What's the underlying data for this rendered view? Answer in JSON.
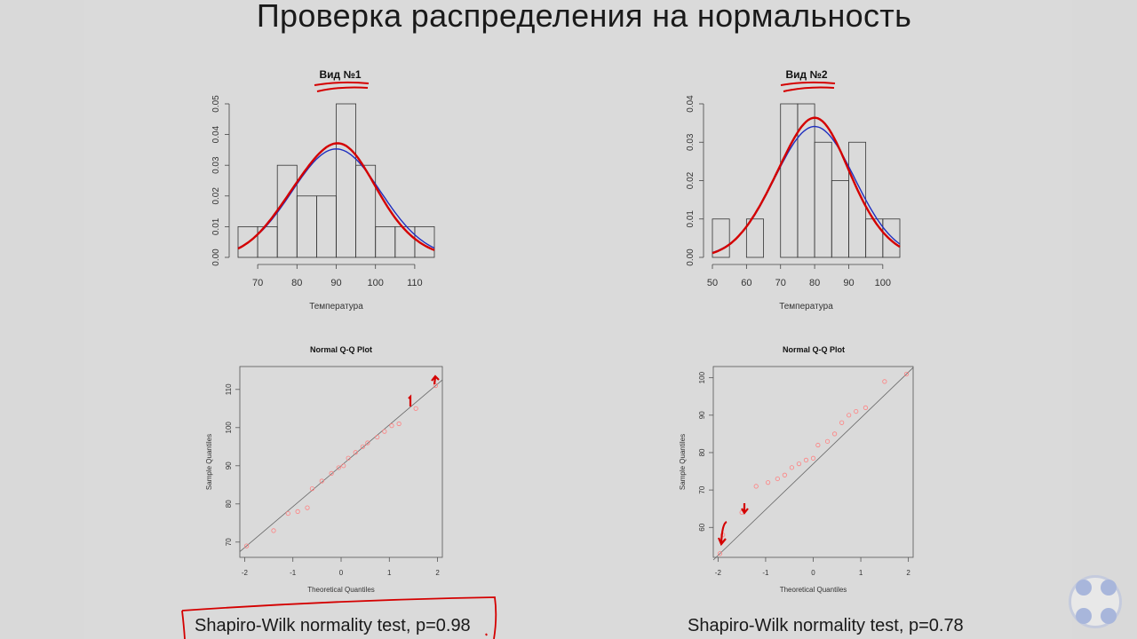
{
  "slide": {
    "title": "Проверка распределения на нормальность",
    "test_results": [
      "Shapiro-Wilk normality test, p=0.98",
      "Shapiro-Wilk normality test, p=0.78"
    ]
  },
  "colors": {
    "normal_curve": "#1f2fbf",
    "density_curve": "#d40000",
    "qq_points": "#ff8080",
    "annotation": "#d40000"
  },
  "chart_data": [
    {
      "type": "histogram",
      "title": "Вид №1",
      "xlabel": "Температура",
      "ylabel": "",
      "bins": [
        [
          65,
          70
        ],
        [
          70,
          75
        ],
        [
          75,
          80
        ],
        [
          80,
          85
        ],
        [
          85,
          90
        ],
        [
          90,
          95
        ],
        [
          95,
          100
        ],
        [
          100,
          105
        ],
        [
          105,
          110
        ],
        [
          110,
          115
        ]
      ],
      "values": [
        0.01,
        0.01,
        0.03,
        0.02,
        0.02,
        0.05,
        0.03,
        0.01,
        0.01,
        0.01
      ],
      "xticks": [
        "70",
        "80",
        "90",
        "100",
        "110"
      ],
      "yticks": [
        "0.00",
        "0.01",
        "0.02",
        "0.03",
        "0.04",
        "0.05"
      ],
      "xlim": [
        65,
        115
      ],
      "ylim": [
        0,
        0.05
      ]
    },
    {
      "type": "histogram",
      "title": "Вид №2",
      "xlabel": "Температура",
      "ylabel": "",
      "bins": [
        [
          50,
          55
        ],
        [
          55,
          60
        ],
        [
          60,
          65
        ],
        [
          65,
          70
        ],
        [
          70,
          75
        ],
        [
          75,
          80
        ],
        [
          80,
          85
        ],
        [
          85,
          90
        ],
        [
          90,
          95
        ],
        [
          95,
          100
        ],
        [
          100,
          105
        ]
      ],
      "values": [
        0.01,
        0,
        0.01,
        0,
        0.04,
        0.04,
        0.03,
        0.02,
        0.03,
        0.01,
        0.01
      ],
      "xticks": [
        "50",
        "60",
        "70",
        "80",
        "90",
        "100"
      ],
      "yticks": [
        "0.00",
        "0.01",
        "0.02",
        "0.03",
        "0.04"
      ],
      "xlim": [
        50,
        105
      ],
      "ylim": [
        0,
        0.04
      ]
    },
    {
      "type": "scatter",
      "title": "Normal Q-Q Plot",
      "xlabel": "Theoretical Quantiles",
      "ylabel": "Sample Quantiles",
      "xticks": [
        "-2",
        "-1",
        "0",
        "1",
        "2"
      ],
      "yticks": [
        "70",
        "80",
        "90",
        "100",
        "110"
      ],
      "xlim": [
        -2.1,
        2.1
      ],
      "ylim": [
        66,
        116
      ],
      "x": [
        -1.96,
        -1.4,
        -1.1,
        -0.9,
        -0.7,
        -0.6,
        -0.4,
        -0.2,
        -0.05,
        0.05,
        0.15,
        0.3,
        0.45,
        0.55,
        0.75,
        0.9,
        1.05,
        1.2,
        1.55,
        1.96
      ],
      "y": [
        69,
        73,
        77.5,
        78,
        79,
        84,
        86,
        88,
        89.5,
        90,
        92,
        93.5,
        95,
        96,
        97.5,
        99,
        100.5,
        101,
        105,
        111
      ]
    },
    {
      "type": "scatter",
      "title": "Normal Q-Q Plot",
      "xlabel": "Theoretical Quantiles",
      "ylabel": "Sample Quantiles",
      "xticks": [
        "-2",
        "-1",
        "0",
        "1",
        "2"
      ],
      "yticks": [
        "60",
        "70",
        "80",
        "90",
        "100"
      ],
      "xlim": [
        -2.1,
        2.1
      ],
      "ylim": [
        52,
        103
      ],
      "x": [
        -1.96,
        -1.9,
        -1.5,
        -1.2,
        -0.95,
        -0.75,
        -0.6,
        -0.45,
        -0.3,
        -0.15,
        0,
        0.1,
        0.3,
        0.45,
        0.6,
        0.75,
        0.9,
        1.1,
        1.5,
        1.96
      ],
      "y": [
        53,
        58,
        64,
        71,
        72,
        73,
        74,
        76,
        77,
        78,
        78.5,
        82,
        83,
        85,
        88,
        90,
        91,
        92,
        99,
        101
      ]
    }
  ]
}
